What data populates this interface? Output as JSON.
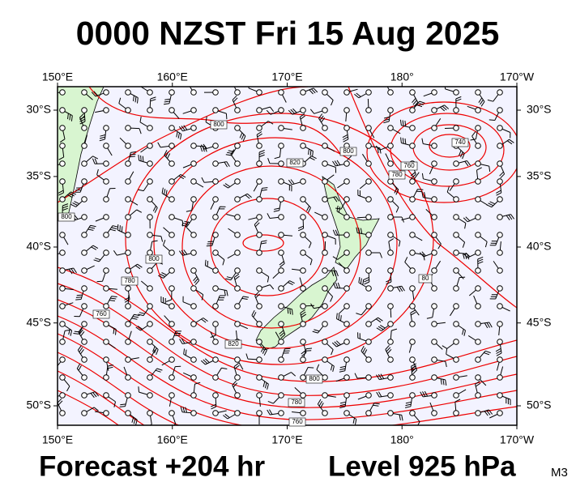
{
  "header": {
    "title": "0000 NZST Fri 15 Aug 2025"
  },
  "map": {
    "lon_ticks": [
      {
        "value": 150,
        "label": "150°E"
      },
      {
        "value": 160,
        "label": "160°E"
      },
      {
        "value": 170,
        "label": "170°E"
      },
      {
        "value": 180,
        "label": "180°"
      },
      {
        "value": 190,
        "label": "170°W"
      }
    ],
    "lat_ticks": [
      {
        "value": 30,
        "label": "30°S"
      },
      {
        "value": 35,
        "label": "35°S"
      },
      {
        "value": 40,
        "label": "40°S"
      },
      {
        "value": 45,
        "label": "45°S"
      },
      {
        "value": 50,
        "label": "50°S"
      }
    ],
    "contour_labels": [
      "800",
      "800",
      "820",
      "740",
      "760",
      "780",
      "800",
      "780",
      "760",
      "820",
      "800",
      "780",
      "760",
      "800",
      "80"
    ]
  },
  "footer": {
    "forecast": "Forecast +204 hr",
    "level": "Level 925 hPa",
    "model": "M3"
  }
}
